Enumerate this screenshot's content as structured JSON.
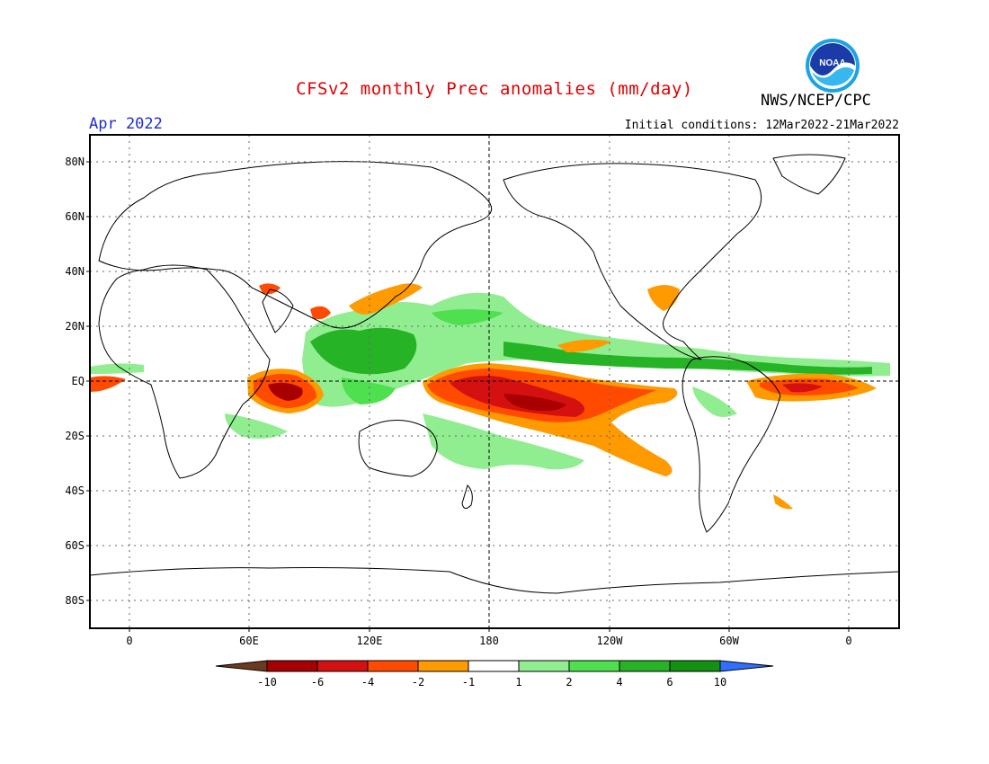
{
  "header": {
    "title": "CFSv2 monthly Prec anomalies (mm/day)",
    "org": "NWS/NCEP/CPC",
    "month": "Apr 2022",
    "initial_conditions": "Initial conditions: 12Mar2022-21Mar2022",
    "logo_text": "NOAA"
  },
  "axes": {
    "lat_labels": [
      "80N",
      "60N",
      "40N",
      "20N",
      "EQ",
      "20S",
      "40S",
      "60S",
      "80S"
    ],
    "lon_labels": [
      "0",
      "60E",
      "120E",
      "180",
      "120W",
      "60W",
      "0"
    ]
  },
  "colorbar": {
    "labels": [
      "-10",
      "-6",
      "-4",
      "-2",
      "-1",
      "1",
      "2",
      "4",
      "6",
      "10"
    ],
    "colors": [
      "#6b3a1f",
      "#a80000",
      "#d41010",
      "#ff4a00",
      "#ff9a00",
      "#ffffff",
      "#90ee90",
      "#4fe04f",
      "#26b326",
      "#139113",
      "#2f6fff"
    ]
  },
  "colors": {
    "title": "#e00000",
    "month": "#1f2bd6",
    "wet_light": "#90ee90",
    "wet_mid": "#4fe04f",
    "wet_dark": "#26b326",
    "dry_light": "#ff9a00",
    "dry_mid": "#ff4a00",
    "dry_dark": "#d41010",
    "dry_darkest": "#a80000"
  }
}
